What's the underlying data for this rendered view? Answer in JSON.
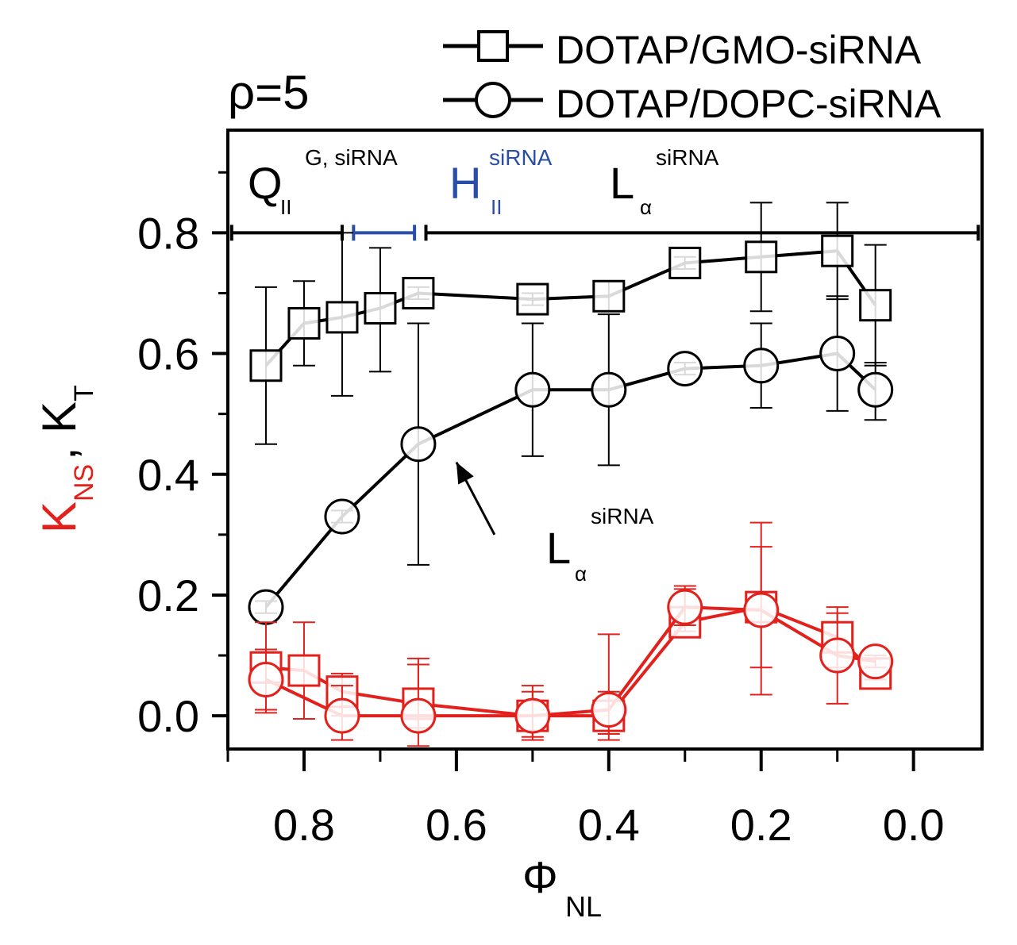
{
  "chart_data": {
    "type": "line",
    "title": "ρ=5",
    "xlabel": "Φ",
    "xlabel_sub": "NL",
    "ylabel_red": "K",
    "ylabel_red_sub": "NS",
    "ylabel_sep": ",",
    "ylabel_black": "K",
    "ylabel_black_sub": "T",
    "xlim": [
      0.9,
      -0.09
    ],
    "ylim": [
      -0.055,
      0.97
    ],
    "xticks": [
      0.8,
      0.6,
      0.4,
      0.2,
      0.0
    ],
    "xtick_labels": [
      "0.8",
      "0.6",
      "0.4",
      "0.2",
      "0.0"
    ],
    "yticks": [
      0.0,
      0.2,
      0.4,
      0.6,
      0.8
    ],
    "ytick_labels": [
      "0.0",
      "0.2",
      "0.4",
      "0.6",
      "0.8"
    ],
    "legend": [
      {
        "label": "DOTAP/GMO-siRNA",
        "marker": "square"
      },
      {
        "label": "DOTAP/DOPC-siRNA",
        "marker": "circle"
      }
    ],
    "phases": [
      {
        "base": "Q",
        "sub": "II",
        "sup": "G, siRNA",
        "color": "#000000",
        "range": [
          0.895,
          0.75
        ]
      },
      {
        "base": "H",
        "sub": "II",
        "sup": "siRNA",
        "color": "#2a4ea8",
        "range": [
          0.735,
          0.655
        ]
      },
      {
        "base": "L",
        "sub": "α",
        "sup": "siRNA",
        "color": "#000000",
        "range": [
          0.64,
          -0.085
        ]
      }
    ],
    "annotation": {
      "base": "L",
      "sub": "α",
      "sup": "siRNA",
      "arrow_from": [
        0.55,
        0.3
      ],
      "arrow_to": [
        0.6,
        0.42
      ]
    },
    "series": [
      {
        "name": "DOTAP/GMO-siRNA K_T",
        "marker": "square",
        "color": "#000000",
        "x": [
          0.85,
          0.8,
          0.75,
          0.7,
          0.65,
          0.5,
          0.4,
          0.3,
          0.2,
          0.1,
          0.05
        ],
        "y": [
          0.58,
          0.65,
          0.66,
          0.675,
          0.7,
          0.69,
          0.695,
          0.75,
          0.76,
          0.77,
          0.68
        ],
        "err_lo": [
          0.45,
          0.58,
          0.53,
          0.57,
          0.69,
          0.68,
          0.67,
          0.74,
          0.67,
          0.69,
          0.58
        ],
        "err_hi": [
          0.71,
          0.72,
          0.8,
          0.775,
          0.71,
          0.7,
          0.72,
          0.76,
          0.85,
          0.85,
          0.78
        ]
      },
      {
        "name": "DOTAP/DOPC-siRNA K_T",
        "marker": "circle",
        "color": "#000000",
        "x": [
          0.85,
          0.75,
          0.65,
          0.5,
          0.4,
          0.3,
          0.2,
          0.1,
          0.05
        ],
        "y": [
          0.18,
          0.33,
          0.45,
          0.54,
          0.54,
          0.575,
          0.58,
          0.6,
          0.54
        ],
        "err_lo": [
          0.17,
          0.32,
          0.25,
          0.43,
          0.415,
          0.565,
          0.51,
          0.505,
          0.49
        ],
        "err_hi": [
          0.19,
          0.34,
          0.65,
          0.65,
          0.665,
          0.585,
          0.65,
          0.695,
          0.585
        ]
      },
      {
        "name": "DOTAP/GMO-siRNA K_NS",
        "marker": "square",
        "color": "#e3211c",
        "x": [
          0.85,
          0.8,
          0.75,
          0.65,
          0.5,
          0.4,
          0.3,
          0.2,
          0.1,
          0.05
        ],
        "y": [
          0.08,
          0.075,
          0.04,
          0.02,
          0.0,
          0.0,
          0.155,
          0.18,
          0.13,
          0.07
        ],
        "err_lo": [
          0.005,
          -0.005,
          0.0,
          -0.02,
          -0.035,
          -0.03,
          0.14,
          0.08,
          0.08,
          0.06
        ],
        "err_hi": [
          0.155,
          0.155,
          0.07,
          0.085,
          0.04,
          0.04,
          0.21,
          0.28,
          0.18,
          0.085
        ]
      },
      {
        "name": "DOTAP/DOPC-siRNA K_NS",
        "marker": "circle",
        "color": "#e3211c",
        "x": [
          0.85,
          0.75,
          0.65,
          0.5,
          0.4,
          0.3,
          0.2,
          0.1,
          0.05
        ],
        "y": [
          0.06,
          0.0,
          0.0,
          0.0,
          0.01,
          0.18,
          0.175,
          0.1,
          0.09
        ],
        "err_lo": [
          0.01,
          -0.04,
          -0.05,
          -0.04,
          -0.04,
          0.15,
          0.035,
          0.02,
          0.08
        ],
        "err_hi": [
          0.11,
          0.05,
          0.095,
          0.05,
          0.135,
          0.215,
          0.32,
          0.17,
          0.1
        ]
      }
    ]
  }
}
